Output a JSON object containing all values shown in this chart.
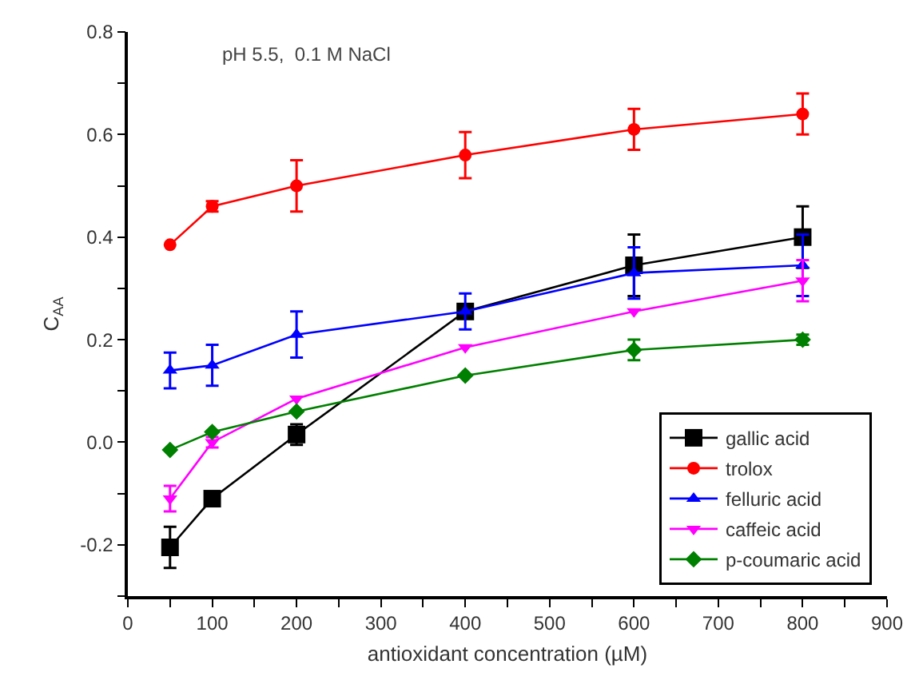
{
  "chart_data": {
    "type": "line",
    "xlabel": "antioxidant concentration (µM)",
    "ylabel": "C$_{AA}$",
    "annotations": [
      "pH 5.5,  0.1 M NaCl"
    ],
    "x": [
      50,
      100,
      200,
      400,
      600,
      800
    ],
    "series": [
      {
        "name": "gallic acid",
        "color": "#000000",
        "marker": "square",
        "values": [
          -0.205,
          -0.11,
          0.015,
          0.255,
          0.345,
          0.4
        ],
        "errors": [
          0.04,
          null,
          0.02,
          null,
          0.06,
          0.06
        ]
      },
      {
        "name": "trolox",
        "color": "#ff0000",
        "marker": "circle",
        "values": [
          0.385,
          0.46,
          0.5,
          0.56,
          0.61,
          0.64
        ],
        "errors": [
          null,
          0.01,
          0.05,
          0.045,
          0.04,
          0.04
        ]
      },
      {
        "name": "felluric acid",
        "color": "#0000ff",
        "marker": "triangle",
        "values": [
          0.14,
          0.15,
          0.21,
          0.255,
          0.33,
          0.345
        ],
        "errors": [
          0.035,
          0.04,
          0.045,
          0.035,
          0.05,
          0.06
        ]
      },
      {
        "name": "caffeic acid",
        "color": "#ff00ff",
        "marker": "triangle-down",
        "values": [
          -0.11,
          0.0,
          0.085,
          0.185,
          0.255,
          0.315
        ],
        "errors": [
          0.025,
          0.01,
          null,
          null,
          null,
          0.04
        ]
      },
      {
        "name": "p-coumaric acid",
        "color": "#008000",
        "marker": "diamond",
        "values": [
          -0.015,
          0.02,
          0.06,
          0.13,
          0.18,
          0.2
        ],
        "errors": [
          null,
          null,
          null,
          null,
          0.02,
          0.01
        ]
      }
    ],
    "xlim": [
      0,
      900
    ],
    "xticks": [
      0,
      {
        "value": 50,
        "label": null
      },
      100,
      {
        "value": 150,
        "label": null
      },
      200,
      {
        "value": 250,
        "label": null
      },
      300,
      {
        "value": 350,
        "label": null
      },
      400,
      {
        "value": 450,
        "label": null
      },
      500,
      {
        "value": 550,
        "label": null
      },
      600,
      {
        "value": 650,
        "label": null
      },
      700,
      {
        "value": 750,
        "label": null
      },
      800,
      {
        "value": 850,
        "label": null
      },
      900
    ],
    "ylim": [
      -0.3,
      0.8
    ],
    "yticks": [
      {
        "value": -0.3,
        "label": null
      },
      {
        "value": -0.2,
        "label": "-0.2"
      },
      {
        "value": -0.1,
        "label": null
      },
      {
        "value": 0,
        "label": "0.0"
      },
      {
        "value": 0.1,
        "label": null
      },
      0.2,
      {
        "value": 0.3,
        "label": null
      },
      0.4,
      {
        "value": 0.5,
        "label": null
      },
      0.6,
      {
        "value": 0.7,
        "label": null
      },
      0.8
    ],
    "grid": false,
    "legend": "bottom right"
  }
}
